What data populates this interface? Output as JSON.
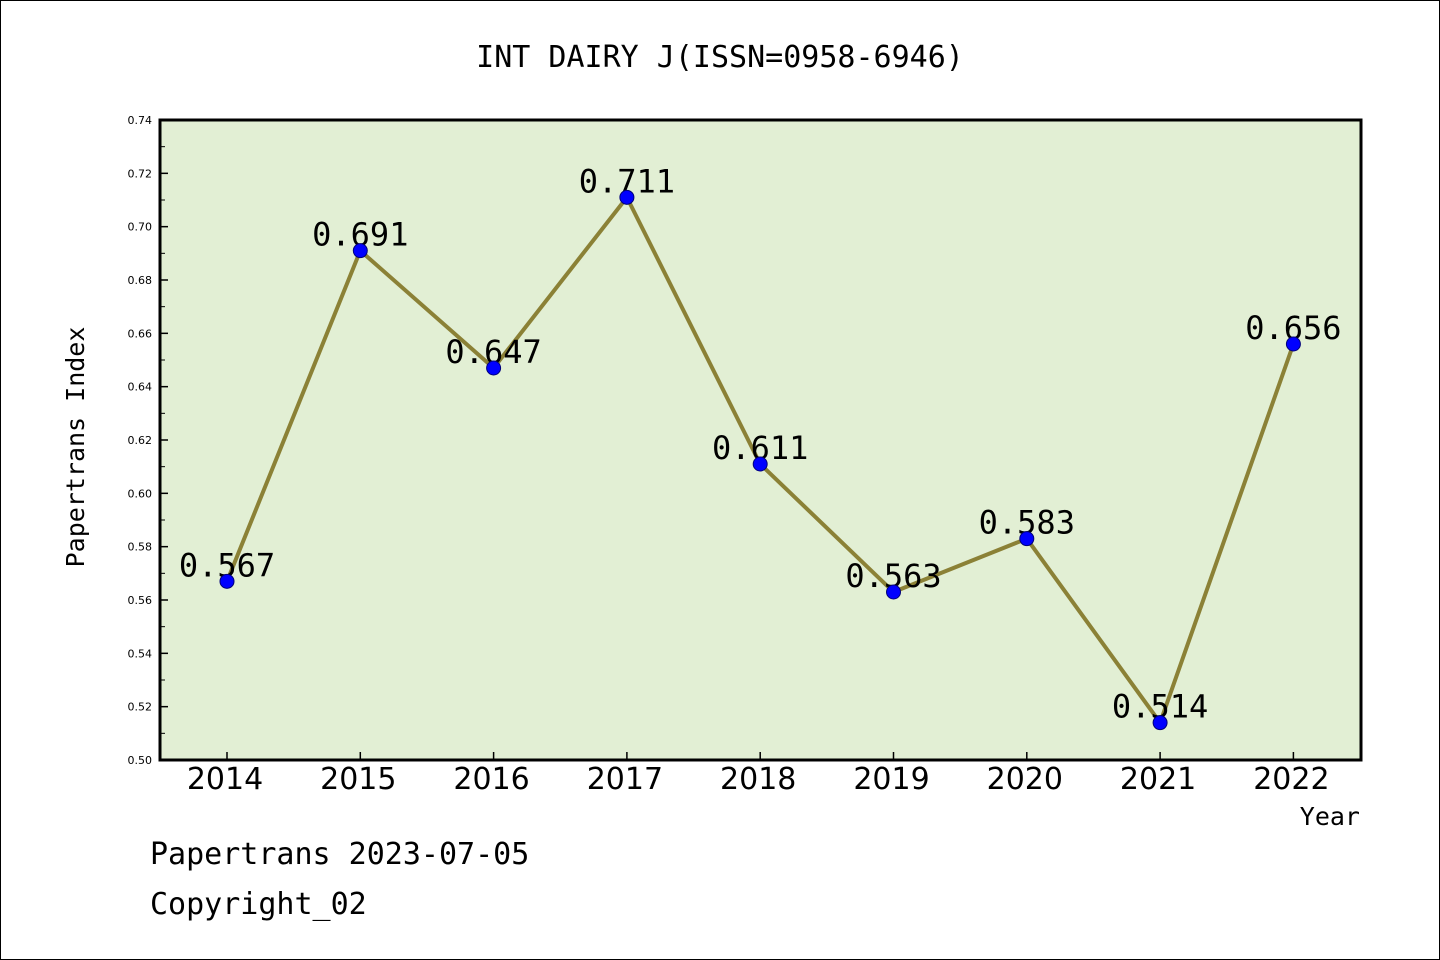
{
  "chart_data": {
    "type": "line",
    "title": "INT DAIRY J(ISSN=0958-6946)",
    "xlabel": "Year",
    "ylabel": "Papertrans Index",
    "categories": [
      "2014",
      "2015",
      "2016",
      "2017",
      "2018",
      "2019",
      "2020",
      "2021",
      "2022"
    ],
    "values": [
      0.567,
      0.691,
      0.647,
      0.711,
      0.611,
      0.563,
      0.583,
      0.514,
      0.656
    ],
    "data_labels": [
      "0.567",
      "0.691",
      "0.647",
      "0.711",
      "0.611",
      "0.563",
      "0.583",
      "0.514",
      "0.656"
    ],
    "ylim": [
      0.5,
      0.74
    ],
    "yticks": [
      "0.50",
      "0.52",
      "0.54",
      "0.56",
      "0.58",
      "0.60",
      "0.62",
      "0.64",
      "0.66",
      "0.68",
      "0.70",
      "0.72",
      "0.74"
    ],
    "grid": false,
    "legend": "none",
    "colors": {
      "plot_background": "#e2efd4",
      "line": "#8b8136",
      "marker": "#0000ff"
    }
  },
  "footer": {
    "line1": "Papertrans 2023-07-05",
    "line2": "Copyright_02"
  }
}
